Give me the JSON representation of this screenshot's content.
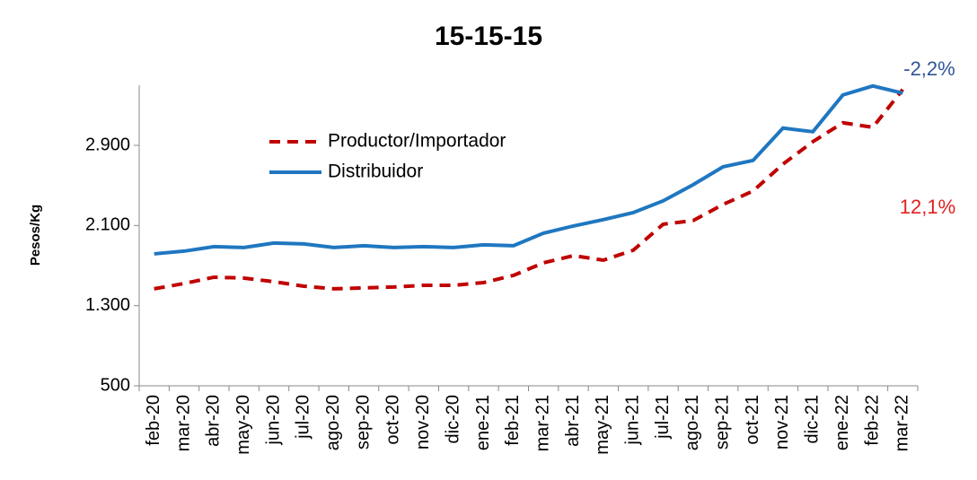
{
  "chart_data": {
    "type": "line",
    "title": "15-15-15",
    "y_label": "Pesos/Kg",
    "categories": [
      "feb-20",
      "mar-20",
      "abr-20",
      "may-20",
      "jun-20",
      "jul-20",
      "ago-20",
      "sep-20",
      "oct-20",
      "nov-20",
      "dic-20",
      "ene-21",
      "feb-21",
      "mar-21",
      "abr-21",
      "may-21",
      "jun-21",
      "jul-21",
      "ago-21",
      "sep-21",
      "oct-21",
      "nov-21",
      "dic-21",
      "ene-22",
      "feb-22",
      "mar-22"
    ],
    "series": [
      {
        "name": "Productor/Importador",
        "color": "#c00000",
        "dash": true,
        "values": [
          1468,
          1521,
          1584,
          1575,
          1539,
          1494,
          1468,
          1477,
          1486,
          1503,
          1503,
          1530,
          1602,
          1727,
          1799,
          1754,
          1853,
          2113,
          2149,
          2310,
          2444,
          2713,
          2937,
          3125,
          3080,
          3457
        ]
      },
      {
        "name": "Distribuidor",
        "color": "#1f77c0",
        "dash": false,
        "values": [
          1817,
          1844,
          1889,
          1880,
          1925,
          1916,
          1880,
          1898,
          1880,
          1889,
          1880,
          1907,
          1898,
          2023,
          2095,
          2158,
          2229,
          2346,
          2507,
          2686,
          2749,
          3072,
          3036,
          3403,
          3493,
          3421
        ]
      }
    ],
    "ylim": [
      500,
      3500
    ],
    "yticks": [
      500,
      {
        "value": 1300,
        "label": "1.300"
      },
      {
        "value": 2100,
        "label": "2.100"
      },
      {
        "value": 2900,
        "label": "2.900"
      }
    ],
    "annotations": [
      {
        "text": "-2,2%",
        "color": "#2f5597"
      },
      {
        "text": "12,1%",
        "color": "#e02020"
      }
    ],
    "legend": "upper left"
  }
}
